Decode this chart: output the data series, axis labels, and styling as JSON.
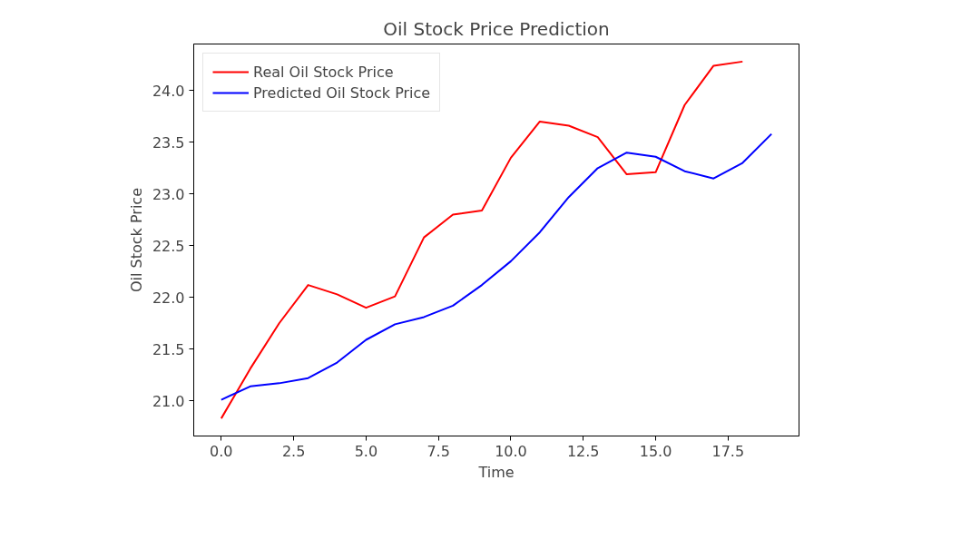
{
  "chart_data": {
    "type": "line",
    "title": "Oil Stock Price Prediction",
    "xlabel": "Time",
    "ylabel": "Oil Stock Price",
    "x": [
      0,
      1,
      2,
      3,
      4,
      5,
      6,
      7,
      8,
      9,
      10,
      11,
      12,
      13,
      14,
      15,
      16,
      17,
      18,
      19
    ],
    "series": [
      {
        "name": "Real Oil Stock Price",
        "color": "#ff0000",
        "x": [
          0,
          1,
          2,
          3,
          4,
          5,
          6,
          7,
          8,
          9,
          10,
          11,
          12,
          13,
          14,
          15,
          16,
          17,
          18
        ],
        "values": [
          20.83,
          21.31,
          21.75,
          22.12,
          22.03,
          21.9,
          22.01,
          22.58,
          22.8,
          22.84,
          23.35,
          23.7,
          23.66,
          23.55,
          23.19,
          23.21,
          23.86,
          24.24,
          24.28
        ]
      },
      {
        "name": "Predicted Oil Stock Price",
        "color": "#0000ff",
        "values": [
          21.01,
          21.14,
          21.17,
          21.22,
          21.37,
          21.59,
          21.74,
          21.81,
          21.92,
          22.12,
          22.35,
          22.63,
          22.97,
          23.25,
          23.4,
          23.36,
          23.22,
          23.15,
          23.3,
          23.58
        ]
      }
    ],
    "xlim": [
      -0.95,
      19.95
    ],
    "ylim": [
      20.66,
      24.45
    ],
    "xticks": [
      {
        "value": 0,
        "label": "0.0"
      },
      {
        "value": 2.5,
        "label": "2.5"
      },
      {
        "value": 5,
        "label": "5.0"
      },
      {
        "value": 7.5,
        "label": "7.5"
      },
      {
        "value": 10,
        "label": "10.0"
      },
      {
        "value": 12.5,
        "label": "12.5"
      },
      {
        "value": 15,
        "label": "15.0"
      },
      {
        "value": 17.5,
        "label": "17.5"
      }
    ],
    "yticks": [
      {
        "value": 21,
        "label": "21.0"
      },
      {
        "value": 21.5,
        "label": "21.5"
      },
      {
        "value": 22,
        "label": "22.0"
      },
      {
        "value": 22.5,
        "label": "22.5"
      },
      {
        "value": 23,
        "label": "23.0"
      },
      {
        "value": 23.5,
        "label": "23.5"
      },
      {
        "value": 24,
        "label": "24.0"
      }
    ],
    "grid": false,
    "legend": "top left"
  }
}
